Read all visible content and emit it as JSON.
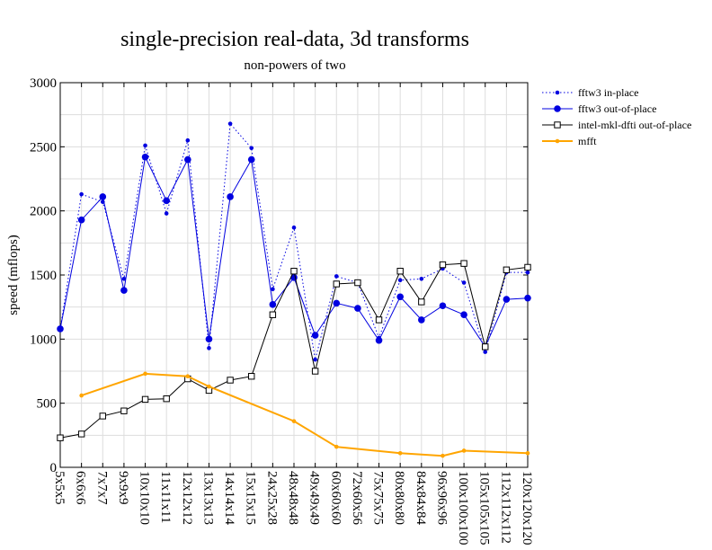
{
  "chart_data": {
    "type": "line",
    "title": "single-precision real-data, 3d transforms",
    "subtitle": "non-powers of two",
    "xlabel": "",
    "ylabel": "speed (mflops)",
    "ylim": [
      0,
      3000
    ],
    "yticks": [
      0,
      500,
      1000,
      1500,
      2000,
      2500,
      3000
    ],
    "grid": true,
    "legend_position": "right",
    "categories": [
      "5x5x5",
      "6x6x6",
      "7x7x7",
      "9x9x9",
      "10x10x10",
      "11x11x11",
      "12x12x12",
      "13x13x13",
      "14x14x14",
      "15x15x15",
      "24x25x28",
      "48x48x48",
      "49x49x49",
      "60x60x60",
      "72x60x56",
      "75x75x75",
      "80x80x80",
      "84x84x84",
      "96x96x96",
      "100x100x100",
      "105x105x105",
      "112x112x112",
      "120x120x120"
    ],
    "series": [
      {
        "name": "fftw3 in-place",
        "color": "#0000e0",
        "style": "dotted",
        "marker": "small-dot",
        "values": [
          1080,
          2130,
          2070,
          1470,
          2510,
          1980,
          2550,
          930,
          2680,
          2490,
          1390,
          1870,
          840,
          1490,
          1440,
          1010,
          1460,
          1470,
          1550,
          1440,
          900,
          1520,
          1520
        ]
      },
      {
        "name": "fftw3 out-of-place",
        "color": "#0000e0",
        "style": "solid",
        "marker": "large-dot",
        "values": [
          1080,
          1930,
          2110,
          1380,
          2420,
          2080,
          2400,
          1000,
          2110,
          2400,
          1270,
          1480,
          1030,
          1280,
          1240,
          990,
          1330,
          1150,
          1260,
          1190,
          940,
          1310,
          1320
        ]
      },
      {
        "name": "intel-mkl-dfti out-of-place",
        "color": "#000000",
        "style": "solid",
        "marker": "open-square",
        "values": [
          230,
          260,
          400,
          440,
          530,
          535,
          690,
          600,
          680,
          710,
          1190,
          1530,
          750,
          1430,
          1440,
          1150,
          1530,
          1290,
          1580,
          1590,
          940,
          1540,
          1560
        ]
      },
      {
        "name": "mfft",
        "color": "#ffa500",
        "style": "solid",
        "marker": "small-dot",
        "values": [
          null,
          560,
          null,
          null,
          730,
          null,
          710,
          630,
          null,
          null,
          null,
          360,
          null,
          160,
          null,
          null,
          110,
          null,
          90,
          130,
          null,
          null,
          110
        ]
      }
    ]
  }
}
